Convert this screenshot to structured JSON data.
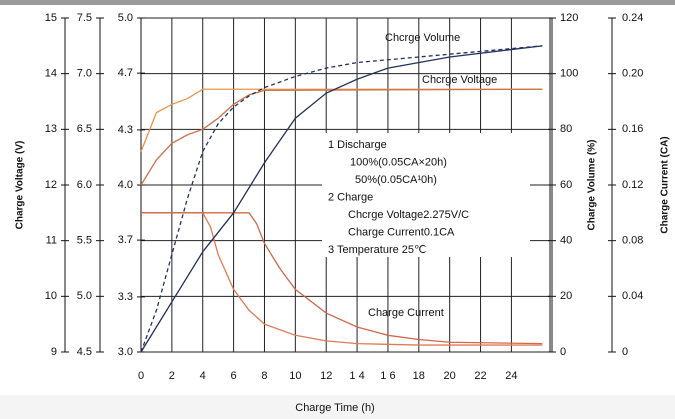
{
  "chart_data": {
    "type": "line",
    "x_label": "Charge Time (h)",
    "y_label": "Charge Voltage (V)",
    "y2_label": "Charge Volume (%)",
    "y3_label": "Charge Current (CA)",
    "xlim": [
      0,
      26.5
    ],
    "xticks": [
      0,
      2,
      4,
      6,
      8,
      10,
      12,
      {
        "value": 14,
        "label": "1 4"
      },
      {
        "value": 16,
        "label": "1 6"
      },
      18,
      20,
      22,
      24
    ],
    "ylim": [
      9,
      15
    ],
    "yticks": [
      9,
      10,
      11,
      12,
      13,
      14,
      15
    ],
    "y_mid_lim": [
      4.5,
      7.5
    ],
    "y_mid_ticks": [
      4.5,
      {
        "value": 5,
        "label": "5.0"
      },
      5.5,
      {
        "value": 6,
        "label": "6.0"
      },
      6.5,
      {
        "value": 7,
        "label": "7.0"
      },
      7.5
    ],
    "y_inner_lim": [
      3,
      5
    ],
    "y_inner_ticks": [
      {
        "value": 3,
        "label": "3.0"
      },
      {
        "value": 3.33,
        "label": "3.3"
      },
      {
        "value": 3.67,
        "label": "3.7"
      },
      {
        "value": 4,
        "label": "4.0"
      },
      {
        "value": 4.33,
        "label": "4.3"
      },
      {
        "value": 4.67,
        "label": "4.7"
      },
      {
        "value": 5,
        "label": "5.0"
      }
    ],
    "y2lim": [
      0,
      120
    ],
    "y2ticks": [
      0,
      20,
      40,
      60,
      80,
      100,
      120
    ],
    "y3lim": [
      0,
      0.24
    ],
    "y3ticks": [
      0,
      0.04,
      0.08,
      0.12,
      0.16,
      {
        "value": 0.2,
        "label": "0.20"
      },
      0.24
    ],
    "grid": true,
    "series": [
      {
        "color": "#e8954a",
        "axis": "y",
        "x": [
          0,
          1,
          2,
          3,
          4,
          26
        ],
        "values": [
          12.6,
          13.3,
          13.45,
          13.55,
          13.72,
          13.72
        ]
      },
      {
        "color": "#c9734a",
        "axis": "y",
        "x": [
          0,
          1,
          2,
          3,
          4,
          5,
          6,
          7,
          8,
          26
        ],
        "values": [
          12.0,
          12.45,
          12.75,
          12.9,
          13.0,
          13.2,
          13.45,
          13.62,
          13.7,
          13.72
        ]
      },
      {
        "color": "#e07a55",
        "axis": "y3",
        "x": [
          0,
          4,
          4.5,
          5,
          6,
          7,
          8,
          10,
          12,
          14,
          18,
          26
        ],
        "values": [
          0.1,
          0.1,
          0.09,
          0.07,
          0.045,
          0.03,
          0.02,
          0.012,
          0.008,
          0.006,
          0.005,
          0.005
        ]
      },
      {
        "color": "#d0684a",
        "axis": "y3",
        "x": [
          0,
          7,
          7.5,
          8,
          9,
          10,
          12,
          14,
          16,
          18,
          20,
          26
        ],
        "values": [
          0.1,
          0.1,
          0.092,
          0.078,
          0.06,
          0.045,
          0.028,
          0.018,
          0.012,
          0.009,
          0.007,
          0.006
        ]
      },
      {
        "color": "#25315e",
        "axis": "y2",
        "dash": true,
        "x": [
          0,
          1,
          2,
          3,
          4,
          5,
          6,
          7,
          8,
          10,
          12,
          14,
          18,
          22,
          26
        ],
        "values": [
          0,
          15,
          35,
          55,
          72,
          82,
          88,
          92,
          95,
          99,
          102,
          104,
          106,
          108,
          110
        ]
      },
      {
        "color": "#25315e",
        "axis": "y2",
        "x": [
          0,
          2,
          4,
          6,
          8,
          10,
          12,
          14,
          16,
          20,
          26
        ],
        "values": [
          0,
          18,
          36,
          50,
          68,
          84,
          93,
          98,
          102,
          106,
          110
        ]
      }
    ],
    "annotations": [
      "Chcrge Volume",
      "Chcrge Voltage",
      "Charge Current"
    ],
    "notes": [
      "1 Discharge",
      "100%(0.05CA×20h)",
      "50%(0.05CA¹0h)",
      "2 Charge",
      "Chcrge Voltage2.275V/C",
      "Charge Current0.1CA",
      "3 Temperature 25℃"
    ]
  }
}
